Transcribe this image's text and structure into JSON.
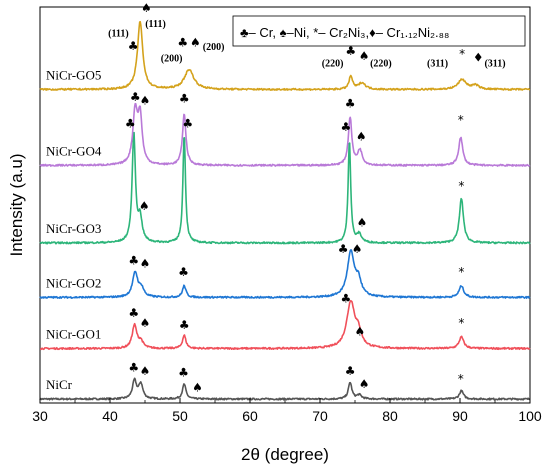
{
  "chart_data": {
    "type": "line",
    "xlabel": "2θ (degree)",
    "ylabel": "Intensity (a.u)",
    "xlim": [
      30,
      100
    ],
    "ylim": [
      0,
      12
    ],
    "xticks": [
      "30",
      "40",
      "50",
      "60",
      "70",
      "80",
      "90",
      "100"
    ],
    "legend": {
      "placement": "top-right",
      "text": "♣– Cr, ♠–Ni, *– Cr₂Ni₃,♦– Cr₁.₁₂Ni₂.₈₈"
    },
    "series": [
      {
        "name": "NiCr",
        "color": "#555555",
        "baseline": 0.12,
        "peaks": [
          {
            "x": 43.5,
            "h": 0.55,
            "w": 0.35
          },
          {
            "x": 44.4,
            "h": 0.45,
            "w": 0.35
          },
          {
            "x": 50.6,
            "h": 0.45,
            "w": 0.3
          },
          {
            "x": 74.3,
            "h": 0.5,
            "w": 0.3
          },
          {
            "x": 75.6,
            "h": 0.12,
            "w": 0.4
          },
          {
            "x": 90.2,
            "h": 0.25,
            "w": 0.35
          }
        ]
      },
      {
        "name": "NiCr-GO1",
        "color": "#f0505a",
        "baseline": 1.65,
        "peaks": [
          {
            "x": 43.5,
            "h": 0.7,
            "w": 0.4
          },
          {
            "x": 44.4,
            "h": 0.2,
            "w": 0.4
          },
          {
            "x": 50.6,
            "h": 0.4,
            "w": 0.3
          },
          {
            "x": 74.4,
            "h": 1.4,
            "w": 0.7
          },
          {
            "x": 75.5,
            "h": 0.4,
            "w": 0.5
          },
          {
            "x": 90.2,
            "h": 0.35,
            "w": 0.4
          }
        ]
      },
      {
        "name": "NiCr-GO2",
        "color": "#1f77d4",
        "baseline": 3.2,
        "peaks": [
          {
            "x": 43.6,
            "h": 0.75,
            "w": 0.45
          },
          {
            "x": 44.5,
            "h": 0.25,
            "w": 0.4
          },
          {
            "x": 50.6,
            "h": 0.35,
            "w": 0.3
          },
          {
            "x": 74.4,
            "h": 1.35,
            "w": 0.6
          },
          {
            "x": 75.5,
            "h": 0.45,
            "w": 0.5
          },
          {
            "x": 90.2,
            "h": 0.35,
            "w": 0.4
          }
        ]
      },
      {
        "name": "NiCr-GO3",
        "color": "#2db57a",
        "baseline": 4.85,
        "peaks": [
          {
            "x": 43.4,
            "h": 3.3,
            "w": 0.28
          },
          {
            "x": 44.3,
            "h": 0.7,
            "w": 0.35
          },
          {
            "x": 50.6,
            "h": 3.3,
            "w": 0.22
          },
          {
            "x": 74.2,
            "h": 3.1,
            "w": 0.22
          },
          {
            "x": 75.6,
            "h": 0.25,
            "w": 0.4
          },
          {
            "x": 90.2,
            "h": 1.35,
            "w": 0.35
          }
        ]
      },
      {
        "name": "NiCr-GO4",
        "color": "#b97ad8",
        "baseline": 7.2,
        "peaks": [
          {
            "x": 43.6,
            "h": 1.6,
            "w": 0.4
          },
          {
            "x": 44.3,
            "h": 1.4,
            "w": 0.35
          },
          {
            "x": 50.6,
            "h": 1.55,
            "w": 0.3
          },
          {
            "x": 74.3,
            "h": 1.45,
            "w": 0.3
          },
          {
            "x": 75.7,
            "h": 0.45,
            "w": 0.4
          },
          {
            "x": 90.1,
            "h": 0.85,
            "w": 0.35
          }
        ]
      },
      {
        "name": "NiCr-GO5",
        "color": "#d4a21c",
        "baseline": 9.5,
        "peaks": [
          {
            "x": 44.3,
            "h": 2.05,
            "w": 0.45
          },
          {
            "x": 51.3,
            "h": 0.6,
            "w": 0.8
          },
          {
            "x": 74.4,
            "h": 0.4,
            "w": 0.3
          },
          {
            "x": 76.0,
            "h": 0.2,
            "w": 0.6
          },
          {
            "x": 90.3,
            "h": 0.3,
            "w": 0.7
          },
          {
            "x": 92.2,
            "h": 0.12,
            "w": 0.6
          }
        ]
      }
    ],
    "annotations": [
      {
        "text": "(111)",
        "x": 41.2,
        "y": 11.1
      },
      {
        "text": "♣",
        "x": 43.3,
        "y": 10.7
      },
      {
        "text": "♠",
        "x": 45.2,
        "y": 11.85
      },
      {
        "text": "(111)",
        "x": 46.5,
        "y": 11.4
      },
      {
        "text": "(200)",
        "x": 48.8,
        "y": 10.35
      },
      {
        "text": "♣",
        "x": 50.4,
        "y": 10.8
      },
      {
        "text": "♠",
        "x": 52.2,
        "y": 10.8
      },
      {
        "text": "(200)",
        "x": 54.8,
        "y": 10.7
      },
      {
        "text": "(220)",
        "x": 71.8,
        "y": 10.2
      },
      {
        "text": "♣",
        "x": 74.4,
        "y": 10.55
      },
      {
        "text": "♠",
        "x": 76.3,
        "y": 10.4
      },
      {
        "text": "(220)",
        "x": 78.7,
        "y": 10.2
      },
      {
        "text": "(311)",
        "x": 86.8,
        "y": 10.2
      },
      {
        "text": "*",
        "x": 90.3,
        "y": 10.45
      },
      {
        "text": "♦",
        "x": 92.6,
        "y": 10.35
      },
      {
        "text": "(311)",
        "x": 95.0,
        "y": 10.2
      },
      {
        "text": "♣",
        "x": 43.6,
        "y": 9.15
      },
      {
        "text": "♠",
        "x": 45.0,
        "y": 9.05
      },
      {
        "text": "♣",
        "x": 50.6,
        "y": 9.1
      },
      {
        "text": "♣",
        "x": 74.3,
        "y": 8.95
      },
      {
        "text": "♠",
        "x": 75.9,
        "y": 7.95
      },
      {
        "text": "*",
        "x": 90.1,
        "y": 8.45
      },
      {
        "text": "♣",
        "x": 42.9,
        "y": 8.35
      },
      {
        "text": "♠",
        "x": 44.9,
        "y": 5.85
      },
      {
        "text": "♣",
        "x": 51.1,
        "y": 8.35
      },
      {
        "text": "♣",
        "x": 73.7,
        "y": 8.25
      },
      {
        "text": "♠",
        "x": 76.0,
        "y": 5.35
      },
      {
        "text": "*",
        "x": 90.2,
        "y": 6.45
      },
      {
        "text": "♣",
        "x": 43.4,
        "y": 4.2
      },
      {
        "text": "♠",
        "x": 45.0,
        "y": 4.1
      },
      {
        "text": "♣",
        "x": 50.5,
        "y": 3.85
      },
      {
        "text": "♣",
        "x": 73.3,
        "y": 4.55
      },
      {
        "text": "♠",
        "x": 75.3,
        "y": 4.55
      },
      {
        "text": "*",
        "x": 90.2,
        "y": 3.85
      },
      {
        "text": "♣",
        "x": 43.4,
        "y": 2.6
      },
      {
        "text": "♠",
        "x": 45.0,
        "y": 2.3
      },
      {
        "text": "♣",
        "x": 50.6,
        "y": 2.25
      },
      {
        "text": "♣",
        "x": 73.7,
        "y": 3.05
      },
      {
        "text": "♠",
        "x": 75.7,
        "y": 2.05
      },
      {
        "text": "*",
        "x": 90.2,
        "y": 2.3
      },
      {
        "text": "♣",
        "x": 43.4,
        "y": 0.95
      },
      {
        "text": "♠",
        "x": 45.0,
        "y": 0.85
      },
      {
        "text": "♣",
        "x": 50.5,
        "y": 0.8
      },
      {
        "text": "♠",
        "x": 52.5,
        "y": 0.35
      },
      {
        "text": "♣",
        "x": 74.3,
        "y": 0.85
      },
      {
        "text": "♠",
        "x": 76.3,
        "y": 0.45
      },
      {
        "text": "*",
        "x": 90.1,
        "y": 0.6
      }
    ]
  }
}
